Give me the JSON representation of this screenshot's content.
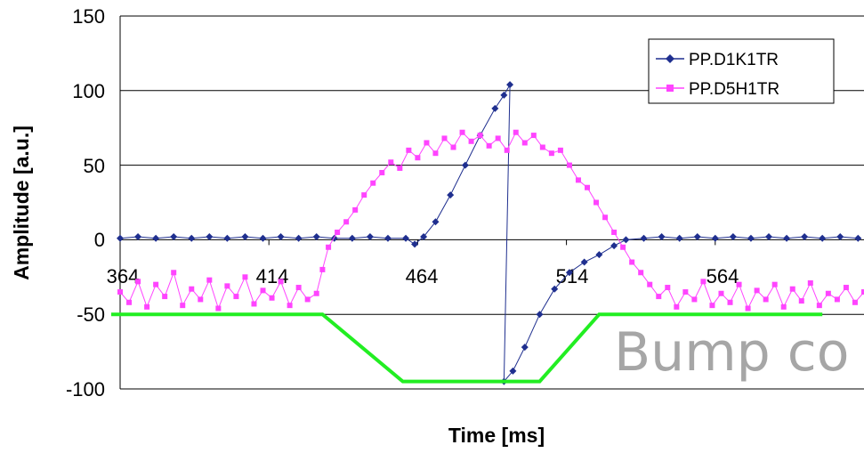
{
  "chart_data": {
    "type": "line",
    "title": "",
    "xlabel": "Time [ms]",
    "ylabel": "Amplitude [a.u.]",
    "xlim": [
      364,
      614
    ],
    "ylim": [
      -100,
      150
    ],
    "x_tick_labels": [
      "364",
      "414",
      "464",
      "514",
      "564"
    ],
    "y_tick_labels": [
      "150",
      "100",
      "50",
      "0",
      "-50",
      "-100"
    ],
    "grid": "horizontal",
    "legend_position": "top-right",
    "overlay_text": "Bump co",
    "series": [
      {
        "name": "PP.D1K1TR",
        "color": "#1f2f8f",
        "marker": "diamond",
        "points": [
          [
            364,
            1
          ],
          [
            370,
            2
          ],
          [
            376,
            1
          ],
          [
            382,
            2
          ],
          [
            388,
            1
          ],
          [
            394,
            2
          ],
          [
            400,
            1
          ],
          [
            406,
            2
          ],
          [
            412,
            1
          ],
          [
            418,
            2
          ],
          [
            424,
            1
          ],
          [
            430,
            2
          ],
          [
            436,
            1
          ],
          [
            442,
            1
          ],
          [
            448,
            2
          ],
          [
            454,
            1
          ],
          [
            460,
            1
          ],
          [
            463,
            -3
          ],
          [
            466,
            2
          ],
          [
            470,
            12
          ],
          [
            475,
            30
          ],
          [
            480,
            50
          ],
          [
            485,
            70
          ],
          [
            490,
            88
          ],
          [
            493,
            97
          ],
          [
            495,
            104
          ],
          [
            493,
            -95
          ],
          [
            496,
            -88
          ],
          [
            500,
            -72
          ],
          [
            505,
            -50
          ],
          [
            510,
            -33
          ],
          [
            515,
            -22
          ],
          [
            520,
            -15
          ],
          [
            525,
            -10
          ],
          [
            530,
            -4
          ],
          [
            534,
            0
          ],
          [
            540,
            1
          ],
          [
            546,
            2
          ],
          [
            552,
            1
          ],
          [
            558,
            2
          ],
          [
            564,
            1
          ],
          [
            570,
            2
          ],
          [
            576,
            1
          ],
          [
            582,
            2
          ],
          [
            588,
            1
          ],
          [
            594,
            2
          ],
          [
            600,
            1
          ],
          [
            606,
            2
          ],
          [
            612,
            1
          ]
        ]
      },
      {
        "name": "PP.D5H1TR",
        "color": "#ff44ff",
        "marker": "square",
        "points": [
          [
            364,
            -35
          ],
          [
            367,
            -42
          ],
          [
            370,
            -28
          ],
          [
            373,
            -45
          ],
          [
            376,
            -30
          ],
          [
            379,
            -38
          ],
          [
            382,
            -22
          ],
          [
            385,
            -44
          ],
          [
            388,
            -33
          ],
          [
            391,
            -40
          ],
          [
            394,
            -27
          ],
          [
            397,
            -46
          ],
          [
            400,
            -31
          ],
          [
            403,
            -38
          ],
          [
            406,
            -25
          ],
          [
            409,
            -43
          ],
          [
            412,
            -34
          ],
          [
            415,
            -39
          ],
          [
            418,
            -28
          ],
          [
            421,
            -44
          ],
          [
            424,
            -32
          ],
          [
            427,
            -40
          ],
          [
            430,
            -36
          ],
          [
            432,
            -20
          ],
          [
            434,
            -5
          ],
          [
            437,
            5
          ],
          [
            440,
            12
          ],
          [
            443,
            20
          ],
          [
            446,
            30
          ],
          [
            449,
            38
          ],
          [
            452,
            45
          ],
          [
            455,
            52
          ],
          [
            458,
            48
          ],
          [
            461,
            60
          ],
          [
            464,
            55
          ],
          [
            467,
            65
          ],
          [
            470,
            58
          ],
          [
            473,
            68
          ],
          [
            476,
            62
          ],
          [
            479,
            72
          ],
          [
            482,
            66
          ],
          [
            485,
            70
          ],
          [
            488,
            63
          ],
          [
            491,
            68
          ],
          [
            494,
            60
          ],
          [
            497,
            72
          ],
          [
            500,
            65
          ],
          [
            503,
            70
          ],
          [
            506,
            62
          ],
          [
            509,
            58
          ],
          [
            512,
            60
          ],
          [
            515,
            50
          ],
          [
            518,
            40
          ],
          [
            521,
            35
          ],
          [
            524,
            25
          ],
          [
            527,
            15
          ],
          [
            530,
            5
          ],
          [
            533,
            -5
          ],
          [
            536,
            -15
          ],
          [
            539,
            -22
          ],
          [
            542,
            -30
          ],
          [
            545,
            -38
          ],
          [
            548,
            -32
          ],
          [
            551,
            -45
          ],
          [
            554,
            -35
          ],
          [
            557,
            -40
          ],
          [
            560,
            -28
          ],
          [
            563,
            -44
          ],
          [
            566,
            -36
          ],
          [
            569,
            -42
          ],
          [
            572,
            -30
          ],
          [
            575,
            -46
          ],
          [
            578,
            -34
          ],
          [
            581,
            -40
          ],
          [
            584,
            -30
          ],
          [
            587,
            -45
          ],
          [
            590,
            -33
          ],
          [
            593,
            -41
          ],
          [
            596,
            -29
          ],
          [
            599,
            -44
          ],
          [
            602,
            -36
          ],
          [
            605,
            -40
          ],
          [
            608,
            -32
          ],
          [
            611,
            -42
          ],
          [
            614,
            -35
          ]
        ]
      },
      {
        "name": "",
        "color": "#22ee22",
        "marker": "none",
        "points": [
          [
            361,
            -50
          ],
          [
            432,
            -50
          ],
          [
            459,
            -95
          ],
          [
            505,
            -95
          ],
          [
            525,
            -50
          ],
          [
            600,
            -50
          ]
        ]
      }
    ]
  }
}
